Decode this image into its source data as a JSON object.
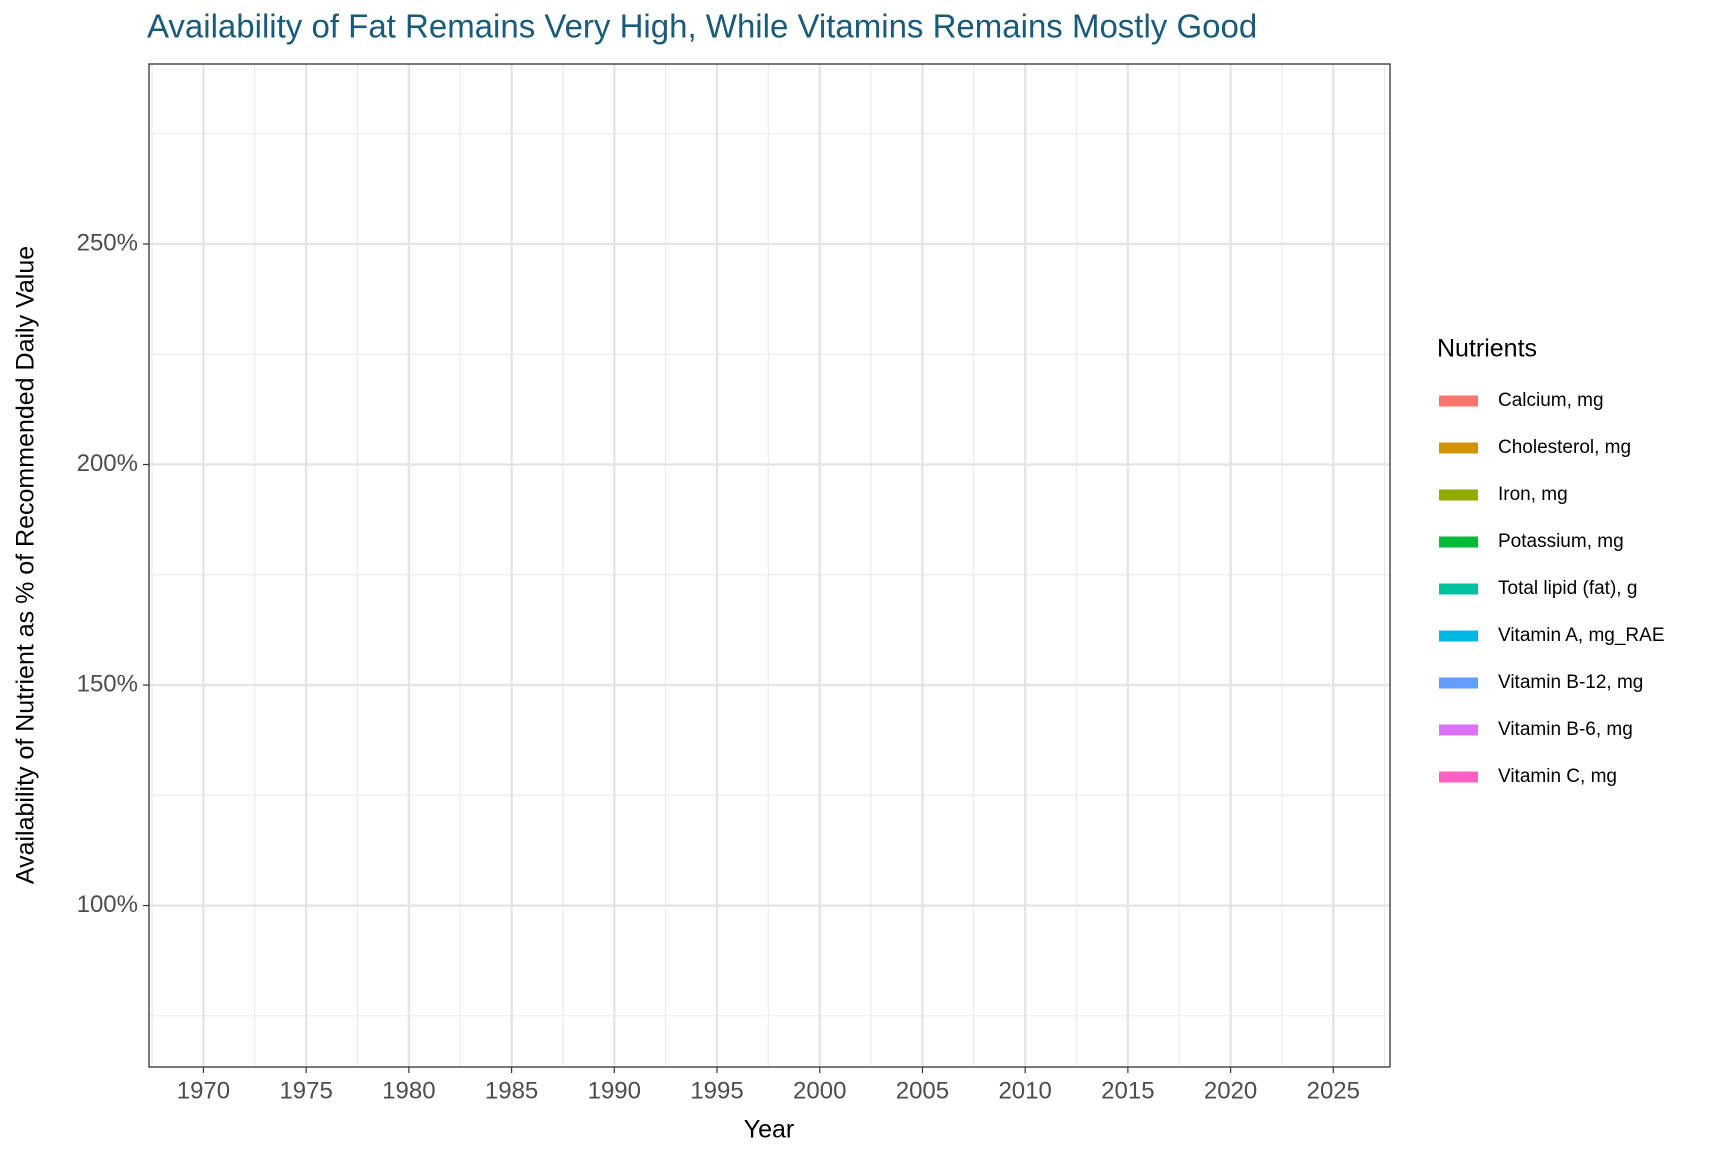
{
  "chart_data": {
    "type": "line",
    "title": "Availability of Fat Remains Very High, While Vitamins Remains Mostly Good",
    "x_label": "Year",
    "y_label": "Availability of Nutrient as % of Recommended Daily Value",
    "legend_title": "Nutrients",
    "legend_position": "right",
    "grid": true,
    "x": [],
    "series": [
      {
        "name": "Calcium, mg",
        "color": "#f8766d",
        "values": []
      },
      {
        "name": "Cholesterol, mg",
        "color": "#d39200",
        "values": []
      },
      {
        "name": "Iron, mg",
        "color": "#93aa00",
        "values": []
      },
      {
        "name": "Potassium, mg",
        "color": "#00ba38",
        "values": []
      },
      {
        "name": "Total lipid (fat), g",
        "color": "#00c19f",
        "values": []
      },
      {
        "name": "Vitamin A,  mg_RAE",
        "color": "#00b9e3",
        "values": []
      },
      {
        "name": "Vitamin B-12, mg",
        "color": "#619cff",
        "values": []
      },
      {
        "name": "Vitamin B-6, mg",
        "color": "#db72fb",
        "values": []
      },
      {
        "name": "Vitamin C, mg",
        "color": "#ff61c3",
        "values": []
      }
    ],
    "xlim": [
      1967.35,
      2027.76
    ],
    "xticks": [
      1970,
      1975,
      1980,
      1985,
      1990,
      1995,
      2000,
      2005,
      2010,
      2015,
      2020,
      2025
    ],
    "xminorticks": [
      1967.5,
      1972.5,
      1977.5,
      1982.5,
      1987.5,
      1992.5,
      1997.5,
      2002.5,
      2007.5,
      2012.5,
      2017.5,
      2022.5,
      2027.5
    ],
    "ylim": [
      63.4,
      290.8
    ],
    "yticks": [
      {
        "value": 100,
        "label": "100%"
      },
      {
        "value": 150,
        "label": "150%"
      },
      {
        "value": 200,
        "label": "200%"
      },
      {
        "value": 250,
        "label": "250%"
      }
    ],
    "yminorticks": [
      75,
      125,
      175,
      225,
      275
    ]
  }
}
